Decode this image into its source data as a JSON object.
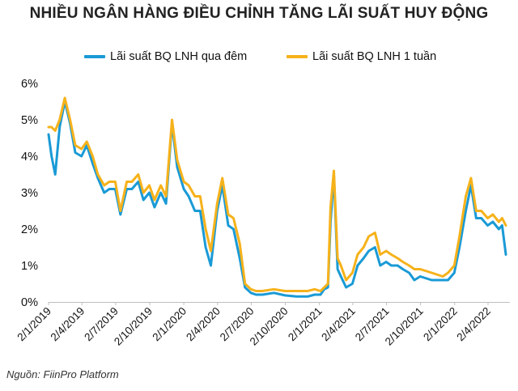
{
  "title": "NHIỀU NGÂN HÀNG ĐIỀU CHỈNH TĂNG LÃI SUẤT HUY ĐỘNG",
  "source": "Nguồn: FiinPro Platform",
  "colors": {
    "overnight": "#1a9ad6",
    "one_week": "#f6b21b",
    "axis": "#bfbfbf"
  },
  "chart_data": {
    "type": "line",
    "title": "NHIỀU NGÂN HÀNG ĐIỀU CHỈNH TĂNG LÃI SUẤT HUY ĐỘNG",
    "xlabel": "",
    "ylabel": "",
    "ylim": [
      0,
      6
    ],
    "y_ticks": [
      "0%",
      "1%",
      "2%",
      "3%",
      "4%",
      "5%",
      "6%"
    ],
    "x_ticks": [
      "2/1/2019",
      "2/4/2019",
      "2/7/2019",
      "2/10/2019",
      "2/1/2020",
      "2/4/2020",
      "2/7/2020",
      "2/10/2020",
      "2/1/2021",
      "2/4/2021",
      "2/7/2021",
      "2/10/2021",
      "2/1/2022",
      "2/4/2022"
    ],
    "grid": false,
    "legend": "top",
    "x": [
      "2019-01-02",
      "2019-01-10",
      "2019-01-20",
      "2019-02-01",
      "2019-02-15",
      "2019-03-01",
      "2019-03-15",
      "2019-04-01",
      "2019-04-15",
      "2019-05-01",
      "2019-05-15",
      "2019-06-01",
      "2019-06-15",
      "2019-07-01",
      "2019-07-15",
      "2019-08-01",
      "2019-08-15",
      "2019-09-01",
      "2019-09-15",
      "2019-10-01",
      "2019-10-15",
      "2019-11-01",
      "2019-11-15",
      "2019-12-01",
      "2019-12-15",
      "2020-01-02",
      "2020-01-15",
      "2020-02-01",
      "2020-02-15",
      "2020-03-01",
      "2020-03-15",
      "2020-04-01",
      "2020-04-15",
      "2020-05-01",
      "2020-05-15",
      "2020-06-01",
      "2020-06-15",
      "2020-07-01",
      "2020-07-15",
      "2020-08-01",
      "2020-09-01",
      "2020-10-01",
      "2020-11-01",
      "2020-12-01",
      "2020-12-20",
      "2021-01-05",
      "2021-01-15",
      "2021-01-25",
      "2021-02-01",
      "2021-02-10",
      "2021-02-20",
      "2021-03-01",
      "2021-03-15",
      "2021-04-01",
      "2021-04-15",
      "2021-05-01",
      "2021-05-15",
      "2021-06-01",
      "2021-06-15",
      "2021-07-01",
      "2021-07-15",
      "2021-08-01",
      "2021-08-15",
      "2021-09-01",
      "2021-09-15",
      "2021-10-01",
      "2021-11-01",
      "2021-12-01",
      "2021-12-15",
      "2022-01-01",
      "2022-01-15",
      "2022-02-01",
      "2022-02-15",
      "2022-03-01",
      "2022-03-15",
      "2022-04-01",
      "2022-04-15",
      "2022-05-01",
      "2022-05-10",
      "2022-05-20"
    ],
    "series": [
      {
        "name": "Lãi suất BQ LNH qua đêm",
        "values": [
          4.6,
          4.0,
          3.5,
          4.8,
          5.5,
          4.9,
          4.1,
          4.0,
          4.3,
          3.8,
          3.4,
          3.0,
          3.1,
          3.1,
          2.4,
          3.1,
          3.1,
          3.3,
          2.8,
          3.0,
          2.6,
          3.0,
          2.7,
          4.9,
          3.7,
          3.1,
          2.9,
          2.5,
          2.5,
          1.5,
          1.0,
          2.5,
          3.2,
          2.1,
          2.0,
          1.2,
          0.4,
          0.25,
          0.2,
          0.2,
          0.25,
          0.18,
          0.15,
          0.15,
          0.2,
          0.2,
          0.35,
          0.4,
          2.2,
          3.5,
          0.9,
          0.7,
          0.4,
          0.5,
          1.0,
          1.2,
          1.4,
          1.5,
          1.0,
          1.1,
          1.0,
          1.0,
          0.9,
          0.8,
          0.6,
          0.7,
          0.6,
          0.6,
          0.6,
          0.8,
          1.5,
          2.5,
          3.2,
          2.3,
          2.3,
          2.1,
          2.2,
          2.0,
          2.1,
          1.3
        ]
      },
      {
        "name": "Lãi suất BQ LNH 1 tuần",
        "values": [
          4.8,
          4.8,
          4.7,
          5.0,
          5.6,
          5.0,
          4.3,
          4.2,
          4.4,
          4.0,
          3.5,
          3.2,
          3.3,
          3.3,
          2.5,
          3.3,
          3.3,
          3.5,
          3.0,
          3.2,
          2.8,
          3.2,
          2.9,
          5.0,
          3.9,
          3.3,
          3.2,
          2.9,
          2.9,
          2.0,
          1.4,
          2.7,
          3.4,
          2.4,
          2.3,
          1.6,
          0.5,
          0.35,
          0.3,
          0.3,
          0.35,
          0.3,
          0.3,
          0.3,
          0.35,
          0.3,
          0.4,
          0.5,
          2.6,
          3.6,
          1.2,
          1.0,
          0.6,
          0.8,
          1.3,
          1.5,
          1.8,
          1.9,
          1.3,
          1.4,
          1.3,
          1.2,
          1.1,
          1.0,
          0.9,
          0.9,
          0.8,
          0.7,
          0.8,
          1.0,
          1.8,
          2.9,
          3.4,
          2.5,
          2.5,
          2.3,
          2.4,
          2.2,
          2.3,
          2.1
        ]
      }
    ]
  },
  "legend": {
    "overnight_label": "Lãi suất BQ LNH qua đêm",
    "one_week_label": "Lãi suất BQ LNH 1 tuần"
  }
}
